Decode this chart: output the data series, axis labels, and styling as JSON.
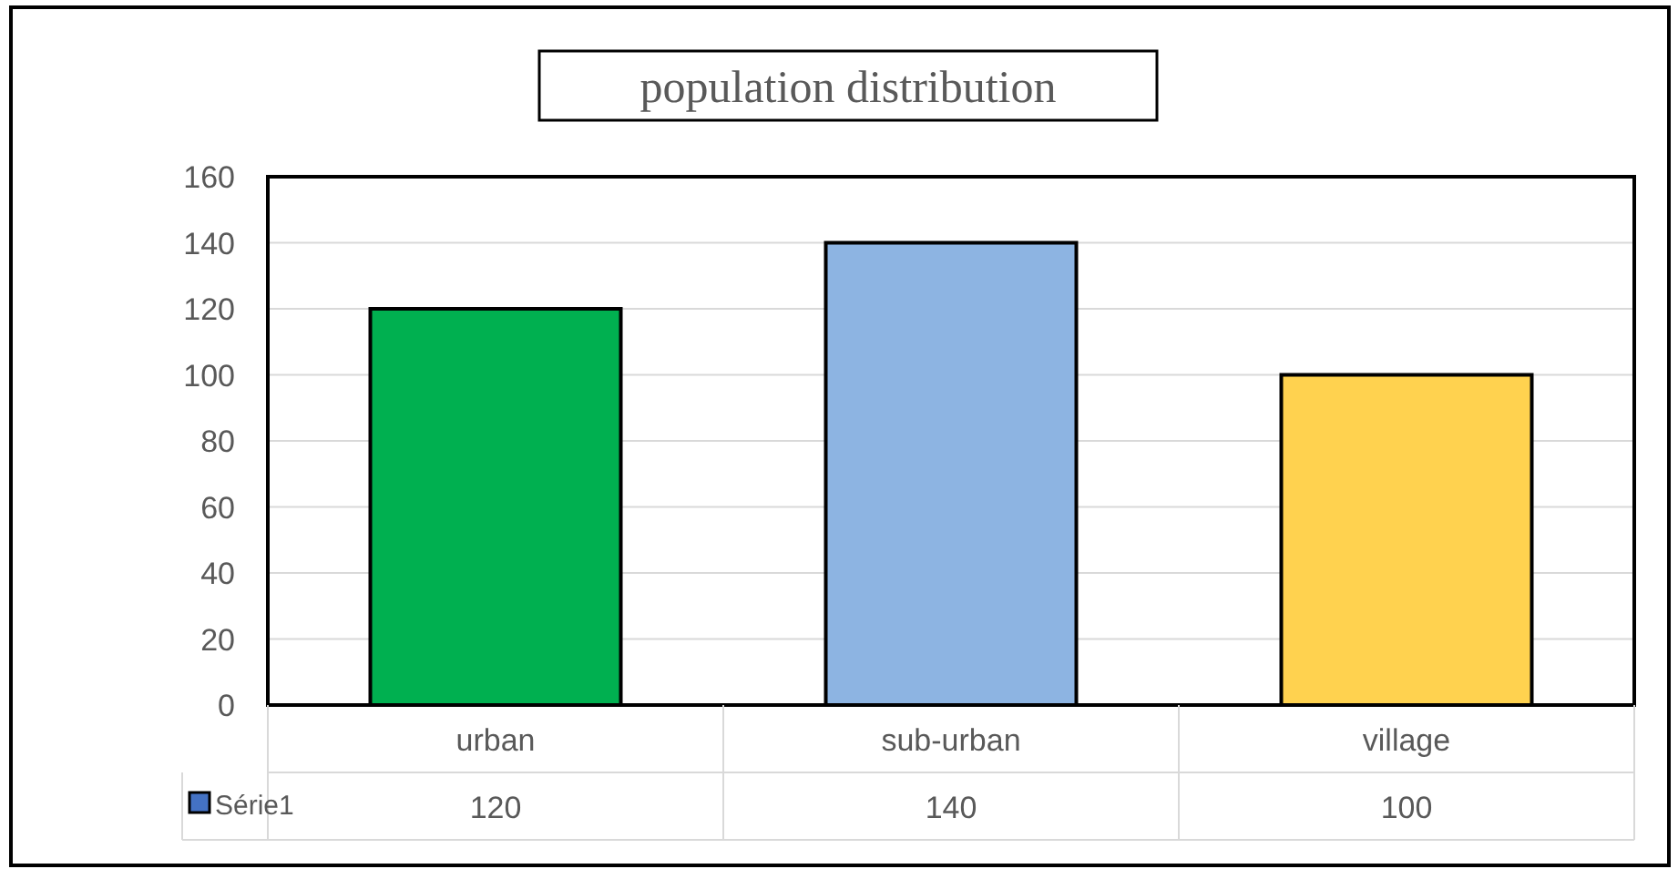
{
  "chart_data": {
    "type": "bar",
    "title": "population distribution",
    "categories": [
      "urban",
      "sub-urban",
      "village"
    ],
    "series": [
      {
        "name": "Série1",
        "color": "#4472c4",
        "colors": [
          "#00b050",
          "#8db4e2",
          "#ffd24f"
        ],
        "values": [
          120,
          140,
          100
        ]
      }
    ],
    "ylim": [
      0,
      160
    ],
    "yticks": [
      0,
      20,
      40,
      60,
      80,
      100,
      120,
      140,
      160
    ],
    "grid": "y",
    "data_labels": true,
    "legend": "bottom"
  }
}
